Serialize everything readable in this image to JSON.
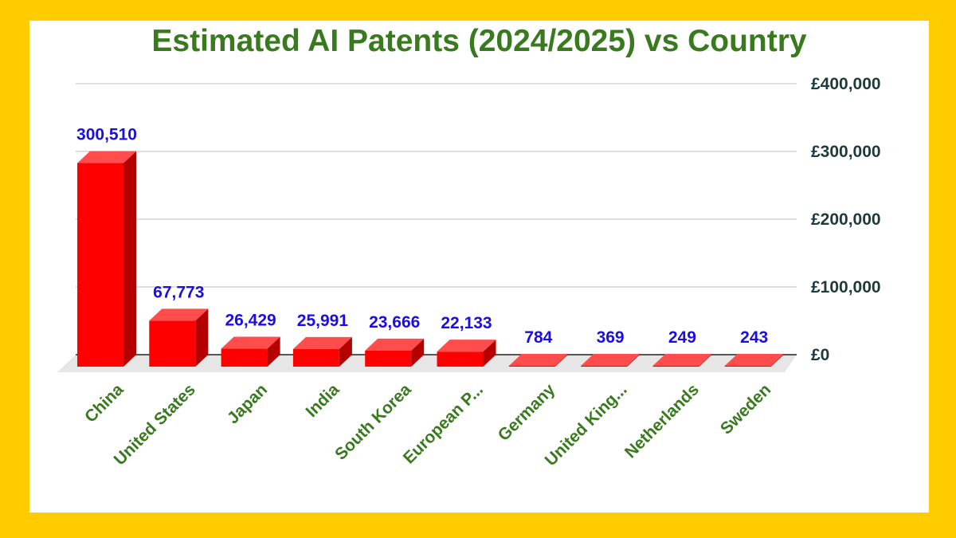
{
  "colors": {
    "border": "#FFCC00",
    "panel": "#FFFFFF",
    "title": "#3A7A1F",
    "bar_front": "#FF0000",
    "bar_top": "#FF4D4D",
    "bar_side": "#B30000",
    "data_label": "#1A0FE0",
    "tick_label": "#1F3A3A",
    "category_label": "#3A7A1F",
    "grid": "#CCCCCC",
    "floor": "#E6E6E6"
  },
  "chart_data": {
    "type": "bar",
    "title": "Estimated AI Patents (2024/2025) vs Country",
    "categories": [
      "China",
      "United States",
      "Japan",
      "India",
      "South Korea",
      "European P...",
      "Germany",
      "United King...",
      "Netherlands",
      "Sweden"
    ],
    "values": [
      300510,
      67773,
      26429,
      25991,
      23666,
      22133,
      784,
      369,
      249,
      243
    ],
    "data_labels": [
      "300,510",
      "67,773",
      "26,429",
      "25,991",
      "23,666",
      "22,133",
      "784",
      "369",
      "249",
      "243"
    ],
    "ylim": [
      0,
      400000
    ],
    "y_ticks": [
      0,
      100000,
      200000,
      300000,
      400000
    ],
    "y_tick_labels": [
      "£0",
      "£100,000",
      "£200,000",
      "£300,000",
      "£400,000"
    ],
    "y_axis_side": "right",
    "grid": true,
    "xlabel": "",
    "ylabel": "",
    "style": "3d-bar"
  }
}
